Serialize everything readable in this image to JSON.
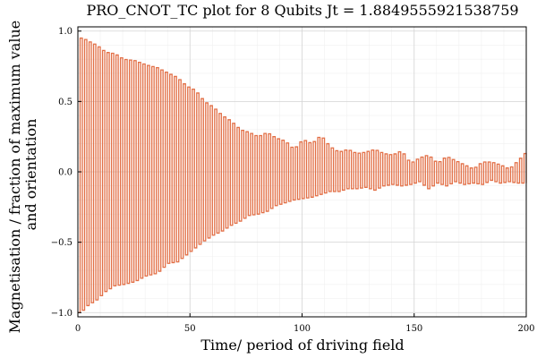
{
  "chart_data": {
    "type": "line",
    "step": true,
    "title": "PRO_CNOT_TC plot for 8 Qubits Jt = 1.8849555921538759",
    "xlabel": "Time/ period of driving field",
    "ylabel": "Magnetisation / fraction of maximum value and orientation",
    "ylabel_lines": [
      "Magnetisation / fraction of maximum value",
      "and orientation"
    ],
    "xlim": [
      0,
      200
    ],
    "ylim": [
      -1.03,
      1.03
    ],
    "xticks": [
      0,
      50,
      100,
      150,
      200
    ],
    "xtick_labels": [
      "0",
      "50",
      "100",
      "150",
      "200"
    ],
    "yticks": [
      -1.0,
      -0.5,
      0.0,
      0.5,
      1.0
    ],
    "ytick_labels": [
      "−1.0",
      "−0.5",
      "0.0",
      "0.5",
      "1.0"
    ],
    "grid": true,
    "legend": false,
    "color": "#e26f46",
    "series": [
      {
        "period": 2,
        "peaks": [
          [
            2,
            0.95
          ],
          [
            4,
            0.93
          ],
          [
            8,
            0.9
          ],
          [
            12,
            0.85
          ],
          [
            16,
            0.84
          ],
          [
            20,
            0.8
          ],
          [
            25,
            0.79
          ],
          [
            30,
            0.76
          ],
          [
            35,
            0.74
          ],
          [
            40,
            0.7
          ],
          [
            44,
            0.67
          ],
          [
            48,
            0.61
          ],
          [
            52,
            0.58
          ],
          [
            56,
            0.5
          ],
          [
            60,
            0.46
          ],
          [
            64,
            0.4
          ],
          [
            68,
            0.36
          ],
          [
            72,
            0.3
          ],
          [
            76,
            0.28
          ],
          [
            80,
            0.25
          ],
          [
            84,
            0.28
          ],
          [
            88,
            0.24
          ],
          [
            92,
            0.22
          ],
          [
            96,
            0.16
          ],
          [
            100,
            0.23
          ],
          [
            104,
            0.2
          ],
          [
            108,
            0.26
          ],
          [
            112,
            0.18
          ],
          [
            116,
            0.14
          ],
          [
            120,
            0.16
          ],
          [
            124,
            0.13
          ],
          [
            128,
            0.14
          ],
          [
            132,
            0.16
          ],
          [
            136,
            0.13
          ],
          [
            140,
            0.12
          ],
          [
            144,
            0.15
          ],
          [
            148,
            0.06
          ],
          [
            152,
            0.1
          ],
          [
            156,
            0.12
          ],
          [
            160,
            0.06
          ],
          [
            164,
            0.11
          ],
          [
            168,
            0.08
          ],
          [
            172,
            0.05
          ],
          [
            176,
            0.02
          ],
          [
            180,
            0.07
          ],
          [
            184,
            0.07
          ],
          [
            188,
            0.05
          ],
          [
            192,
            0.02
          ],
          [
            196,
            0.08
          ],
          [
            199,
            0.13
          ]
        ],
        "troughs": [
          [
            1,
            -1.0
          ],
          [
            4,
            -0.95
          ],
          [
            8,
            -0.91
          ],
          [
            12,
            -0.85
          ],
          [
            16,
            -0.81
          ],
          [
            20,
            -0.8
          ],
          [
            25,
            -0.78
          ],
          [
            30,
            -0.74
          ],
          [
            35,
            -0.72
          ],
          [
            40,
            -0.65
          ],
          [
            44,
            -0.64
          ],
          [
            48,
            -0.59
          ],
          [
            52,
            -0.54
          ],
          [
            56,
            -0.49
          ],
          [
            60,
            -0.45
          ],
          [
            64,
            -0.42
          ],
          [
            68,
            -0.38
          ],
          [
            72,
            -0.35
          ],
          [
            76,
            -0.31
          ],
          [
            80,
            -0.3
          ],
          [
            84,
            -0.28
          ],
          [
            88,
            -0.24
          ],
          [
            92,
            -0.22
          ],
          [
            96,
            -0.2
          ],
          [
            100,
            -0.19
          ],
          [
            104,
            -0.18
          ],
          [
            108,
            -0.16
          ],
          [
            112,
            -0.14
          ],
          [
            116,
            -0.14
          ],
          [
            120,
            -0.12
          ],
          [
            124,
            -0.12
          ],
          [
            128,
            -0.11
          ],
          [
            132,
            -0.13
          ],
          [
            136,
            -0.1
          ],
          [
            140,
            -0.09
          ],
          [
            144,
            -0.1
          ],
          [
            148,
            -0.09
          ],
          [
            152,
            -0.07
          ],
          [
            156,
            -0.12
          ],
          [
            160,
            -0.08
          ],
          [
            164,
            -0.1
          ],
          [
            168,
            -0.07
          ],
          [
            172,
            -0.09
          ],
          [
            176,
            -0.08
          ],
          [
            180,
            -0.09
          ],
          [
            184,
            -0.06
          ],
          [
            188,
            -0.08
          ],
          [
            192,
            -0.07
          ],
          [
            196,
            -0.08
          ],
          [
            200,
            -0.08
          ]
        ]
      }
    ]
  }
}
